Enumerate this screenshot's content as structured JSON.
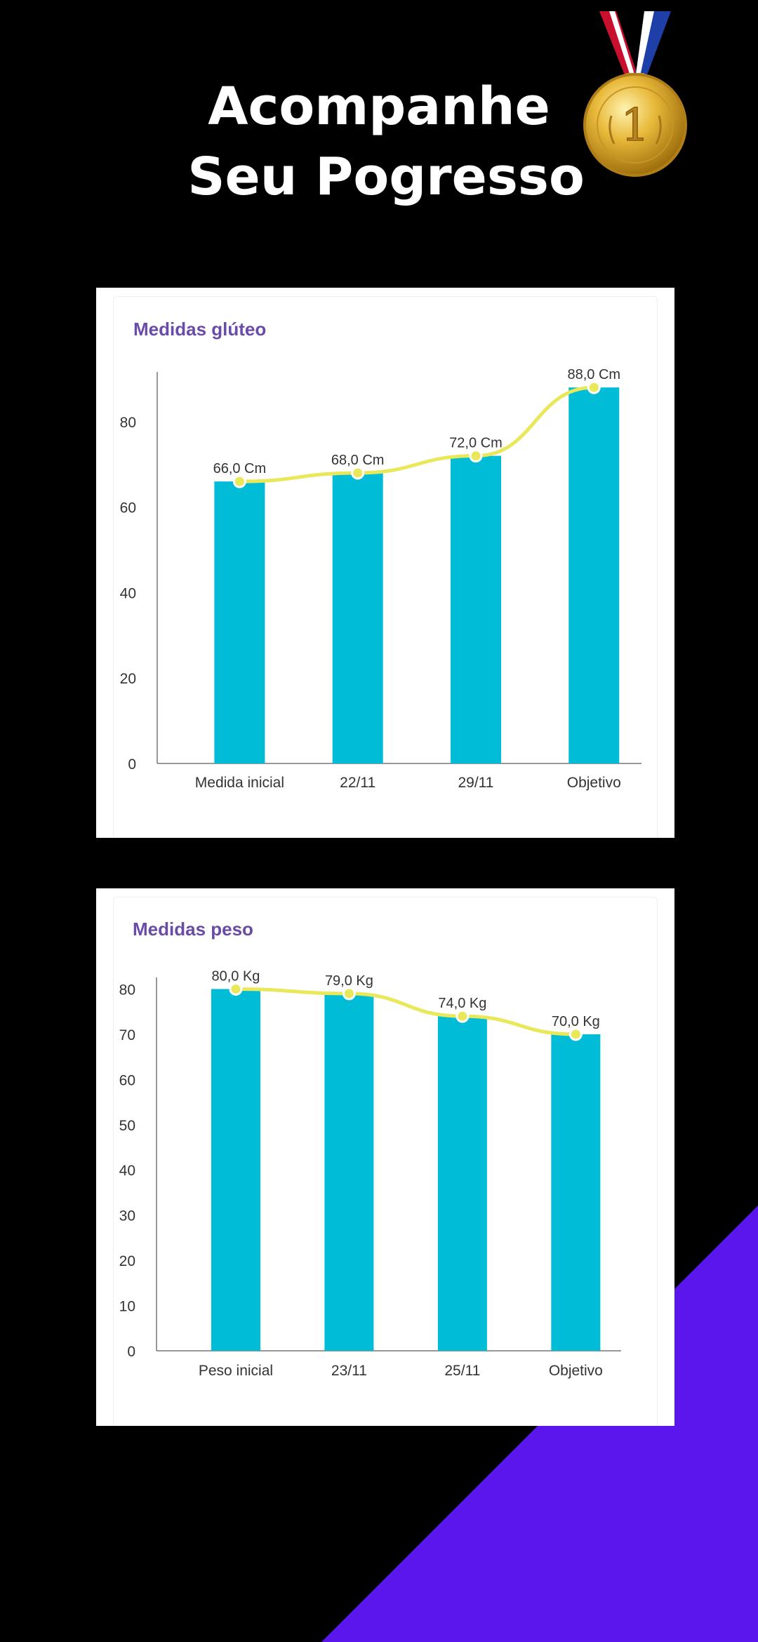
{
  "header": {
    "line1": "Acompanhe",
    "line2": "Seu Pogresso"
  },
  "medal": {
    "number": "1",
    "icon": "gold-medal-icon"
  },
  "colors": {
    "bar": "#00BCD6",
    "line": "#E8E85A",
    "title": "#6A4BA8",
    "accent_wedge": "#5B16EE"
  },
  "chart_data": [
    {
      "type": "bar",
      "title": "Medidas glúteo",
      "categories": [
        "Medida inicial",
        "22/11",
        "29/11",
        "Objetivo"
      ],
      "values": [
        66,
        68,
        72,
        88
      ],
      "data_labels": [
        "66,0 Cm",
        "68,0 Cm",
        "72,0 Cm",
        "88,0 Cm"
      ],
      "yticks": [
        0,
        20,
        40,
        60,
        80
      ],
      "ylim": [
        0,
        90
      ],
      "overlay_line": true
    },
    {
      "type": "bar",
      "title": "Medidas peso",
      "categories": [
        "Peso inicial",
        "23/11",
        "25/11",
        "Objetivo"
      ],
      "values": [
        80,
        79,
        74,
        70
      ],
      "data_labels": [
        "80,0 Kg",
        "79,0 Kg",
        "74,0 Kg",
        "70,0 Kg"
      ],
      "yticks": [
        0,
        10,
        20,
        30,
        40,
        50,
        60,
        70,
        80
      ],
      "ylim": [
        0,
        81
      ],
      "overlay_line": true
    }
  ]
}
